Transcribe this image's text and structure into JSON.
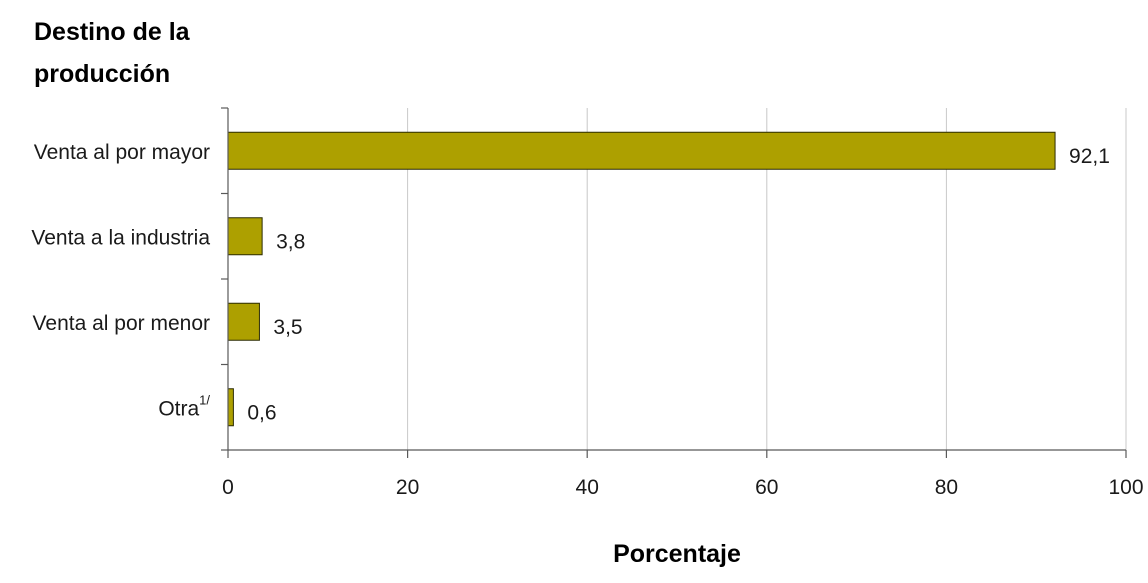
{
  "chart_data": {
    "type": "bar",
    "orientation": "horizontal",
    "ylabel_lines": [
      "Destino de la",
      "producción"
    ],
    "xlabel": "Porcentaje",
    "categories": [
      "Venta al por mayor",
      "Venta a la industria",
      "Venta al por menor",
      "Otra"
    ],
    "category_superscripts": [
      "",
      "",
      "",
      "1/"
    ],
    "values": [
      92.1,
      3.8,
      3.5,
      0.6
    ],
    "value_labels": [
      "92,1",
      "3,8",
      "3,5",
      "0,6"
    ],
    "xlim": [
      0,
      100
    ],
    "xticks": [
      0,
      20,
      40,
      60,
      80,
      100
    ],
    "grid": "vertical",
    "bar_color": "#ADA000",
    "legend": "none"
  }
}
